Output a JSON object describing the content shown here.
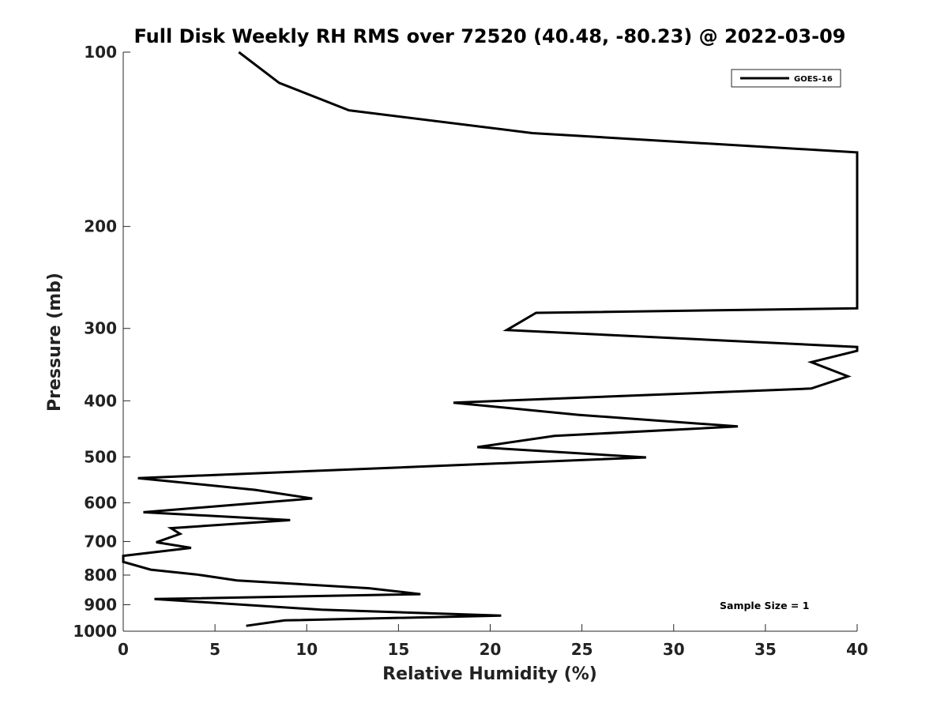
{
  "chart_data": {
    "type": "line",
    "title": "Full Disk Weekly RH RMS over 72520 (40.48, -80.23) @ 2022-03-09",
    "xlabel": "Relative Humidity (%)",
    "ylabel": "Pressure (mb)",
    "xlim": [
      0,
      40
    ],
    "ylim": [
      100,
      1000
    ],
    "y_scale": "log",
    "y_reversed": true,
    "grid": false,
    "legend_position": "top-right",
    "x_ticks": [
      0,
      5,
      10,
      15,
      20,
      25,
      30,
      35,
      40
    ],
    "x_tick_labels": [
      "0",
      "5",
      "10",
      "15",
      "20",
      "25",
      "30",
      "35",
      "40"
    ],
    "y_ticks": [
      100,
      200,
      300,
      400,
      500,
      600,
      700,
      800,
      900,
      1000
    ],
    "y_tick_labels": [
      "100",
      "200",
      "300",
      "400",
      "500",
      "600",
      "700",
      "800",
      "900",
      "1000"
    ],
    "annotation": "Sample Size = 1",
    "series": [
      {
        "name": "GOES-16",
        "color": "#000000",
        "points": [
          {
            "x": 6.3,
            "y": 100
          },
          {
            "x": 8.5,
            "y": 113
          },
          {
            "x": 12.3,
            "y": 126
          },
          {
            "x": 22.3,
            "y": 138
          },
          {
            "x": 40,
            "y": 149
          },
          {
            "x": 40,
            "y": 277
          },
          {
            "x": 22.5,
            "y": 282
          },
          {
            "x": 20.9,
            "y": 302
          },
          {
            "x": 40,
            "y": 323
          },
          {
            "x": 40,
            "y": 328
          },
          {
            "x": 37.5,
            "y": 343
          },
          {
            "x": 39.5,
            "y": 363
          },
          {
            "x": 37.5,
            "y": 381
          },
          {
            "x": 18.0,
            "y": 403
          },
          {
            "x": 24.8,
            "y": 423
          },
          {
            "x": 33.5,
            "y": 443
          },
          {
            "x": 23.5,
            "y": 460
          },
          {
            "x": 19.3,
            "y": 481
          },
          {
            "x": 28.5,
            "y": 501
          },
          {
            "x": 0.8,
            "y": 544
          },
          {
            "x": 7.2,
            "y": 570
          },
          {
            "x": 10.3,
            "y": 590
          },
          {
            "x": 1.1,
            "y": 623
          },
          {
            "x": 9.1,
            "y": 643
          },
          {
            "x": 2.6,
            "y": 664
          },
          {
            "x": 3.1,
            "y": 679
          },
          {
            "x": 1.8,
            "y": 702
          },
          {
            "x": 3.7,
            "y": 718
          },
          {
            "x": 0.0,
            "y": 741
          },
          {
            "x": 0.0,
            "y": 759
          },
          {
            "x": 1.5,
            "y": 783
          },
          {
            "x": 4.0,
            "y": 798
          },
          {
            "x": 6.2,
            "y": 817
          },
          {
            "x": 13.4,
            "y": 843
          },
          {
            "x": 16.2,
            "y": 863
          },
          {
            "x": 1.7,
            "y": 880
          },
          {
            "x": 10.8,
            "y": 918
          },
          {
            "x": 20.6,
            "y": 940
          },
          {
            "x": 8.8,
            "y": 958
          },
          {
            "x": 6.7,
            "y": 979
          }
        ]
      }
    ]
  }
}
